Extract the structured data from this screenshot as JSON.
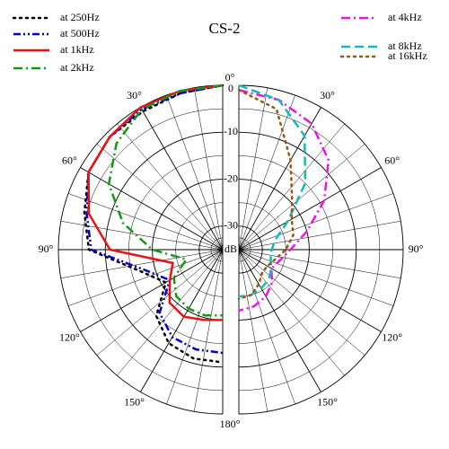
{
  "chart_data": {
    "type": "polar",
    "title": "CS-2",
    "r_label": "dB",
    "rlim": [
      -35,
      0
    ],
    "rticks": [
      0,
      -10,
      -20,
      -30
    ],
    "thetaticks": [
      {
        "value": 0,
        "label": "0°"
      },
      {
        "value": 30,
        "label": "30°"
      },
      {
        "value": 60,
        "label": "60°"
      },
      {
        "value": 90,
        "label": "90°"
      },
      {
        "value": 120,
        "label": "120°"
      },
      {
        "value": 150,
        "label": "150°"
      },
      {
        "value": 180,
        "label": "180°"
      }
    ],
    "theta": [
      0,
      15,
      30,
      45,
      60,
      75,
      90,
      105,
      120,
      135,
      150,
      165,
      180
    ],
    "series": [
      {
        "name": "at 250Hz",
        "side": "left",
        "color": "#000000",
        "dash": "dotted",
        "values": [
          0,
          -0.5,
          -1,
          -1,
          -2,
          -4.5,
          -6.5,
          -17,
          -21,
          -15,
          -12,
          -11,
          -11
        ]
      },
      {
        "name": "at 500Hz",
        "side": "left",
        "color": "#0000cc",
        "dash": "dash-dot-dot",
        "values": [
          0,
          -0.5,
          -0.5,
          -1,
          -2,
          -5,
          -7,
          -18,
          -22,
          -16,
          -13.5,
          -13,
          -13
        ]
      },
      {
        "name": "at 1kHz",
        "side": "left",
        "color": "#ee1111",
        "dash": "solid",
        "values": [
          0,
          0,
          0,
          -1,
          -2,
          -5.5,
          -11,
          -24,
          -22,
          -19,
          -18.5,
          -19.5,
          -20
        ]
      },
      {
        "name": "at 2kHz",
        "side": "left",
        "color": "#119911",
        "dash": "dash-dot",
        "values": [
          0,
          0,
          -0.5,
          -3,
          -7,
          -13,
          -20,
          -27,
          -23,
          -21,
          -20.5,
          -20.5,
          -21
        ]
      },
      {
        "name": "at 4kHz",
        "side": "right",
        "color": "#ee11ee",
        "dash": "dash-dot",
        "values": [
          -1,
          -2,
          -4,
          -8,
          -14,
          -20,
          -24,
          -26,
          -27,
          -25,
          -23.5,
          -22.5,
          -22
        ]
      },
      {
        "name": "at 8kHz",
        "side": "right",
        "color": "#11bbbb",
        "dash": "dashed",
        "values": [
          0,
          -2,
          -7,
          -15,
          -23,
          -27,
          -28,
          -28,
          -27,
          -26,
          -25.5,
          -25,
          -25
        ]
      },
      {
        "name": "at 16kHz",
        "side": "right",
        "color": "#995511",
        "dash": "dotted",
        "values": [
          -1,
          -4,
          -13,
          -19,
          -22,
          -23,
          -25,
          -27,
          -28,
          -28,
          -26.5,
          -25,
          -24.5
        ]
      }
    ]
  }
}
